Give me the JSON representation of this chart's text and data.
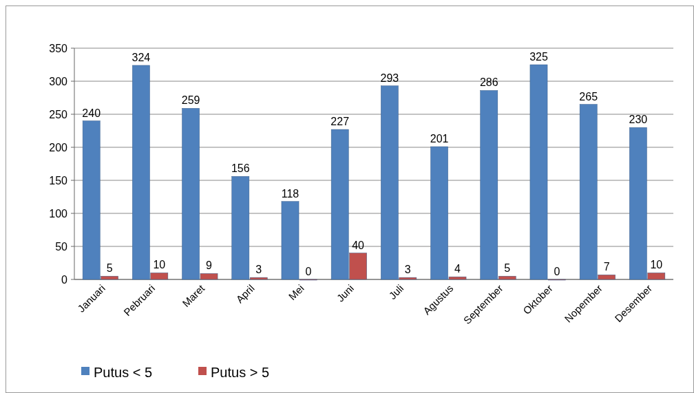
{
  "chart_data": {
    "type": "bar",
    "categories": [
      "Januari",
      "Pebruari",
      "Maret",
      "April",
      "Mei",
      "Juni",
      "Juli",
      "Agustus",
      "September",
      "Oktober",
      "Nopember",
      "Desember"
    ],
    "series": [
      {
        "name": "Putus < 5",
        "color": "#4f81bd",
        "values": [
          240,
          324,
          259,
          156,
          118,
          227,
          293,
          201,
          286,
          325,
          265,
          230
        ]
      },
      {
        "name": "Putus > 5",
        "color": "#c0504d",
        "values": [
          5,
          10,
          9,
          3,
          0,
          40,
          3,
          4,
          5,
          0,
          7,
          10
        ]
      }
    ],
    "ylim": [
      0,
      350
    ],
    "yticks": [
      0,
      50,
      100,
      150,
      200,
      250,
      300,
      350
    ],
    "grid": "y",
    "data_labels": true,
    "legend": "bottom"
  }
}
